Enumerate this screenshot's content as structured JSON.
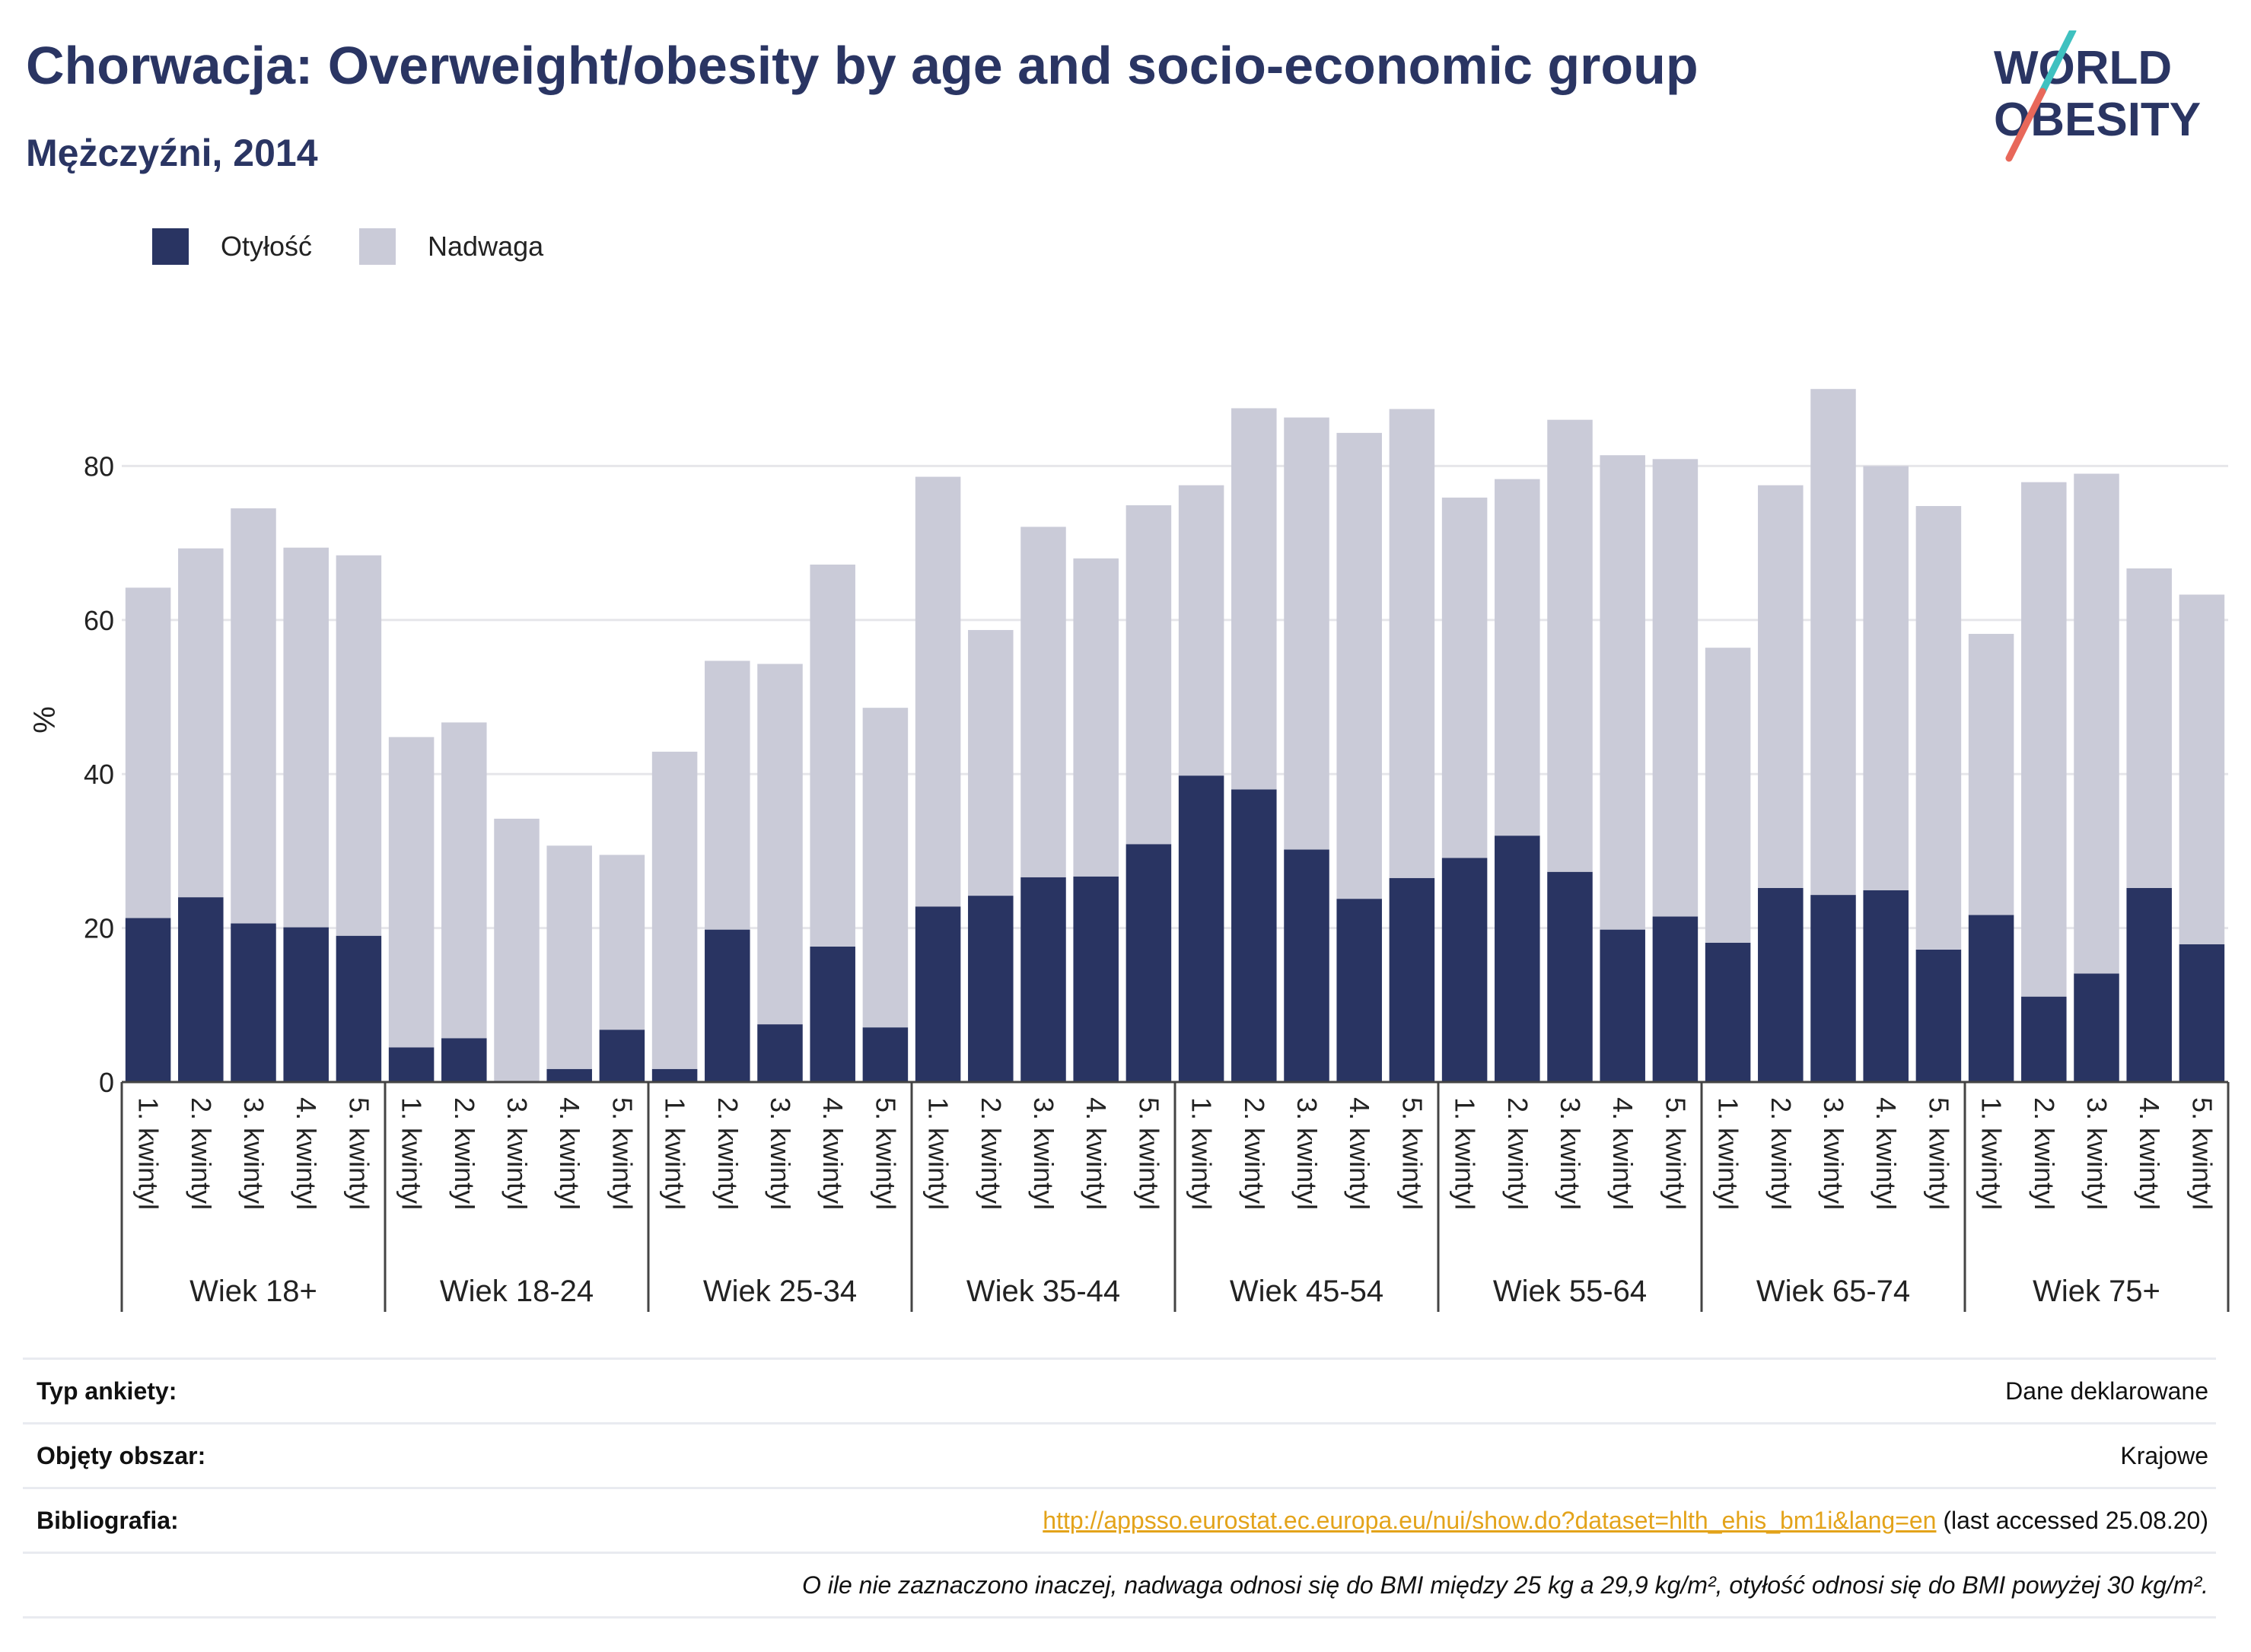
{
  "header": {
    "title": "Chorwacja: Overweight/obesity by age and socio-economic group",
    "subtitle": "Mężczyźni, 2014"
  },
  "logo": {
    "line1": "WORLD",
    "line2": "OBESITY",
    "slash_colors": [
      "#3fc1c0",
      "#e8685a"
    ]
  },
  "legend": [
    {
      "label": "Otyłość",
      "color": "#293462"
    },
    {
      "label": "Nadwaga",
      "color": "#cacbd8"
    }
  ],
  "chart_data": {
    "type": "bar",
    "stacked": true,
    "ylabel": "%",
    "ylim": [
      0,
      100
    ],
    "yticks": [
      0,
      20,
      40,
      60,
      80
    ],
    "grid": true,
    "legend_position": "top-left",
    "groups": [
      "Wiek 18+",
      "Wiek 18-24",
      "Wiek 25-34",
      "Wiek 35-44",
      "Wiek 45-54",
      "Wiek 55-64",
      "Wiek 65-74",
      "Wiek 75+"
    ],
    "categories": [
      "1. kwintyl",
      "2. kwintyl",
      "3. kwintyl",
      "4. kwintyl",
      "5. kwintyl"
    ],
    "series": [
      {
        "name": "Otyłość",
        "color": "#293462",
        "values": [
          [
            21.3,
            24.0,
            20.6,
            20.1,
            19.0
          ],
          [
            4.5,
            5.7,
            0.0,
            1.7,
            6.8
          ],
          [
            1.7,
            19.8,
            7.5,
            17.6,
            7.1
          ],
          [
            22.8,
            24.2,
            26.6,
            26.7,
            30.9
          ],
          [
            39.8,
            38.0,
            30.2,
            23.8,
            26.5
          ],
          [
            29.1,
            32.0,
            27.3,
            19.8,
            21.5
          ],
          [
            18.1,
            25.2,
            24.3,
            24.9,
            17.2
          ],
          [
            21.7,
            11.1,
            14.1,
            25.2,
            17.9
          ]
        ]
      },
      {
        "name": "Nadwaga",
        "color": "#cacbd8",
        "values": [
          [
            42.9,
            45.3,
            53.9,
            49.3,
            49.4
          ],
          [
            40.3,
            41.0,
            34.2,
            29.0,
            22.7
          ],
          [
            41.2,
            34.9,
            46.8,
            49.6,
            41.5
          ],
          [
            55.8,
            34.5,
            45.5,
            41.3,
            44.0
          ],
          [
            37.7,
            49.5,
            56.1,
            60.5,
            60.9
          ],
          [
            46.8,
            46.3,
            58.7,
            61.6,
            59.4
          ],
          [
            38.3,
            52.3,
            65.7,
            55.1,
            57.6
          ],
          [
            36.5,
            66.8,
            64.9,
            41.5,
            45.4
          ]
        ]
      }
    ]
  },
  "info": {
    "survey_label": "Typ ankiety:",
    "survey_value": "Dane deklarowane",
    "area_label": "Objęty obszar:",
    "area_value": "Krajowe",
    "bib_label": "Bibliografia:",
    "bib_link": "http://appsso.eurostat.ec.europa.eu/nui/show.do?dataset=hlth_ehis_bm1i&lang=en",
    "bib_note": " (last accessed 25.08.20)",
    "footnote": "O ile nie zaznaczono inaczej, nadwaga odnosi się do BMI między 25 kg a 29,9 kg/m², otyłość odnosi się do BMI powyżej 30 kg/m²."
  }
}
